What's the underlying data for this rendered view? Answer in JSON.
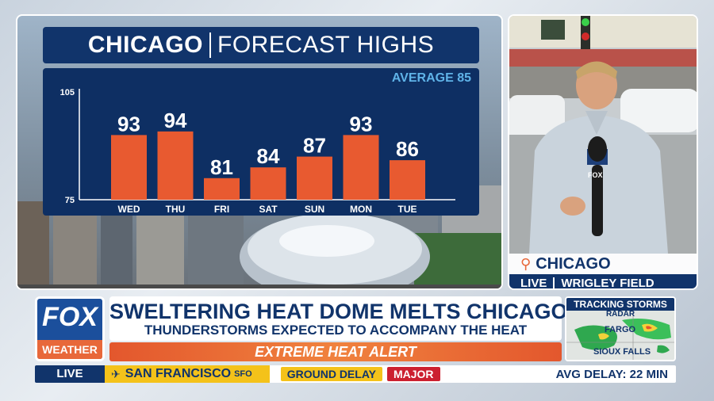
{
  "forecast": {
    "city": "CHICAGO",
    "title": "FORECAST HIGHS",
    "average_label": "AVERAGE",
    "average_value": "85"
  },
  "chart_data": {
    "type": "bar",
    "categories": [
      "WED",
      "THU",
      "FRI",
      "SAT",
      "SUN",
      "MON",
      "TUE"
    ],
    "values": [
      93,
      94,
      81,
      84,
      87,
      93,
      86
    ],
    "value_labels": [
      "93",
      "94",
      "81",
      "84",
      "87",
      "93",
      "86"
    ],
    "ylim": [
      75,
      105
    ],
    "yticks": [
      "105",
      "75"
    ],
    "bar_color": "#e85a30"
  },
  "live_panel": {
    "location": "CHICAGO",
    "live_label": "LIVE",
    "venue": "WRIGLEY FIELD",
    "mic_flag": "FOX"
  },
  "lower_third": {
    "logo_top": "FOX",
    "logo_bottom": "WEATHER",
    "headline": "SWELTERING HEAT DOME MELTS CHICAGO",
    "subhead": "THUNDERSTORMS EXPECTED TO ACCOMPANY THE HEAT",
    "alert": "EXTREME HEAT ALERT"
  },
  "radar": {
    "title": "TRACKING STORMS",
    "subtitle": "RADAR",
    "cities": [
      "FARGO",
      "SIOUX FALLS"
    ]
  },
  "ticker": {
    "live": "LIVE",
    "city": "SAN FRANCISCO",
    "code": "SFO",
    "status": "GROUND DELAY",
    "severity": "MAJOR",
    "avg_delay": "AVG DELAY: 22 MIN"
  },
  "colors": {
    "navy": "#11346b",
    "orange": "#e8683a",
    "yellow": "#f4c21a",
    "red": "#cc2030"
  }
}
